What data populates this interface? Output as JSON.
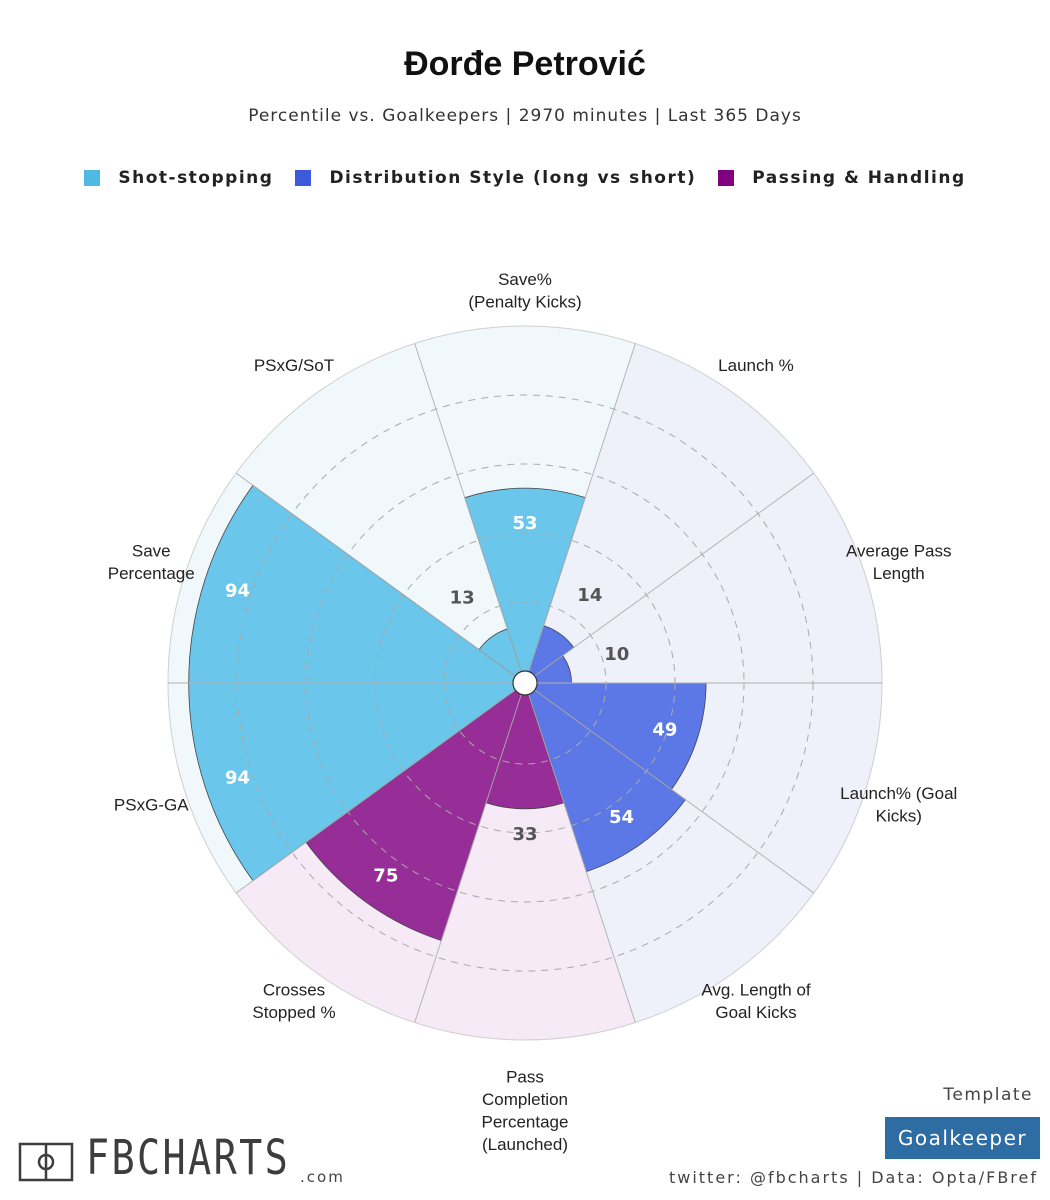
{
  "header": {
    "title": "Đorđe Petrović",
    "subtitle": "Percentile vs. Goalkeepers | 2970 minutes | Last 365 Days"
  },
  "legend": [
    {
      "label": "Shot-stopping",
      "color": "#4fb9e3"
    },
    {
      "label": "Distribution Style (long vs short)",
      "color": "#3b5bdb"
    },
    {
      "label": "Passing & Handling",
      "color": "#800080"
    }
  ],
  "chart_data": {
    "type": "polar-bar",
    "rmax": 100,
    "rings": [
      20,
      40,
      60,
      80
    ],
    "segments": [
      {
        "label": "Save%\n(Penalty Kicks)",
        "value": 53,
        "group": "Shot-stopping"
      },
      {
        "label": "Launch %",
        "value": 14,
        "group": "Distribution Style (long vs short)"
      },
      {
        "label": "Average Pass\nLength",
        "value": 10,
        "group": "Distribution Style (long vs short)"
      },
      {
        "label": "Launch% (Goal\nKicks)",
        "value": 49,
        "group": "Distribution Style (long vs short)"
      },
      {
        "label": "Avg. Length of\nGoal Kicks",
        "value": 54,
        "group": "Distribution Style (long vs short)"
      },
      {
        "label": "Pass\nCompletion\nPercentage\n(Launched)",
        "value": 33,
        "group": "Passing & Handling"
      },
      {
        "label": "Crosses\nStopped %",
        "value": 75,
        "group": "Passing & Handling"
      },
      {
        "label": "PSxG-GA",
        "value": 94,
        "group": "Shot-stopping"
      },
      {
        "label": "Save\nPercentage",
        "value": 94,
        "group": "Shot-stopping"
      },
      {
        "label": "PSxG/SoT",
        "value": 13,
        "group": "Shot-stopping"
      }
    ],
    "group_colors": {
      "Shot-stopping": {
        "bar": "#6ac6ea",
        "bg": "#f1f8fc",
        "text": "#ffffff"
      },
      "Distribution Style (long vs short)": {
        "bar": "#5b78e6",
        "bg": "#eef0fa",
        "text": "#ffffff"
      },
      "Passing & Handling": {
        "bar": "#972d97",
        "bg": "#f5eaf5",
        "text": "#ffffff"
      }
    }
  },
  "footer": {
    "brand": "FBCHARTS",
    "brand_suffix": ".com",
    "template_label": "Template",
    "template_value": "Goalkeeper",
    "credits": "twitter: @fbcharts | Data: Opta/FBref"
  }
}
